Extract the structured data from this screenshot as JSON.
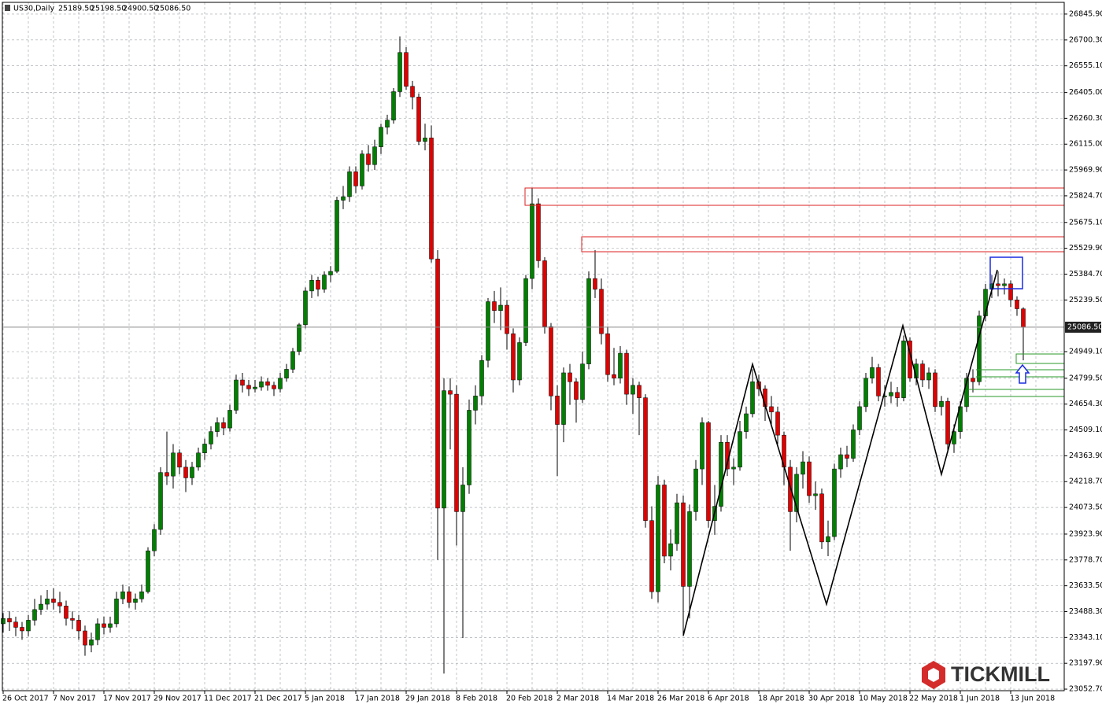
{
  "chart_data": {
    "type": "candlestick",
    "title": "US30,Daily",
    "header_labels": [
      "25189.50",
      "25198.50",
      "24900.50",
      "25086.50"
    ],
    "watermark": "TICKMILL",
    "up_color": "#008000",
    "down_color": "#e00000",
    "grid": true,
    "ylim": [
      23044,
      26925
    ],
    "yticks": [
      {
        "value": 26845.9,
        "label": "26845.90"
      },
      {
        "value": 26700.3,
        "label": "26700.30"
      },
      {
        "value": 26555.1,
        "label": "26555.10"
      },
      {
        "value": 26405,
        "label": "26405.00"
      },
      {
        "value": 26260.3,
        "label": "26260.30"
      },
      {
        "value": 26115,
        "label": "26115.00"
      },
      {
        "value": 25969.9,
        "label": "25969.90"
      },
      {
        "value": 25824.7,
        "label": "25824.70"
      },
      {
        "value": 25675.1,
        "label": "25675.10"
      },
      {
        "value": 25529.9,
        "label": "25529.90"
      },
      {
        "value": 25384.7,
        "label": "25384.70"
      },
      {
        "value": 25239.5,
        "label": "25239.50"
      },
      {
        "value": 24949.1,
        "label": "24949.10"
      },
      {
        "value": 24799.5,
        "label": "24799.50"
      },
      {
        "value": 24654.3,
        "label": "24654.30"
      },
      {
        "value": 24509.1,
        "label": "24509.10"
      },
      {
        "value": 24363.9,
        "label": "24363.90"
      },
      {
        "value": 24218.7,
        "label": "24218.70"
      },
      {
        "value": 24073.5,
        "label": "24073.50"
      },
      {
        "value": 23923.9,
        "label": "23923.90"
      },
      {
        "value": 23778.7,
        "label": "23778.70"
      },
      {
        "value": 23633.5,
        "label": "23633.50"
      },
      {
        "value": 23488.3,
        "label": "23488.30"
      },
      {
        "value": 23343.1,
        "label": "23343.10"
      },
      {
        "value": 23197.9,
        "label": "23197.90"
      },
      {
        "value": 23052.7,
        "label": "23052.70"
      }
    ],
    "last_price": {
      "value": 25086.5,
      "label": "25086.50"
    },
    "categories": [
      "26 Oct 2017",
      null,
      null,
      null,
      null,
      null,
      null,
      null,
      "7 Nov 2017",
      null,
      null,
      null,
      null,
      null,
      null,
      null,
      "17 Nov 2017",
      null,
      null,
      null,
      null,
      null,
      null,
      null,
      "29 Nov 2017",
      null,
      null,
      null,
      null,
      null,
      null,
      null,
      "11 Dec 2017",
      null,
      null,
      null,
      null,
      null,
      null,
      null,
      "21 Dec 2017",
      null,
      null,
      null,
      null,
      null,
      null,
      null,
      "5 Jan 2018",
      null,
      null,
      null,
      null,
      null,
      null,
      null,
      "17 Jan 2018",
      null,
      null,
      null,
      null,
      null,
      null,
      null,
      "29 Jan 2018",
      null,
      null,
      null,
      null,
      null,
      null,
      null,
      "8 Feb 2018",
      null,
      null,
      null,
      null,
      null,
      null,
      null,
      "20 Feb 2018",
      null,
      null,
      null,
      null,
      null,
      null,
      null,
      "2 Mar 2018",
      null,
      null,
      null,
      null,
      null,
      null,
      null,
      "14 Mar 2018",
      null,
      null,
      null,
      null,
      null,
      null,
      null,
      "26 Mar 2018",
      null,
      null,
      null,
      null,
      null,
      null,
      null,
      "6 Apr 2018",
      null,
      null,
      null,
      null,
      null,
      null,
      null,
      "18 Apr 2018",
      null,
      null,
      null,
      null,
      null,
      null,
      null,
      "30 Apr 2018",
      null,
      null,
      null,
      null,
      null,
      null,
      null,
      "10 May 2018",
      null,
      null,
      null,
      null,
      null,
      null,
      null,
      "22 May 2018",
      null,
      null,
      null,
      null,
      null,
      null,
      null,
      "1 Jun 2018",
      null,
      null,
      null,
      null,
      null,
      null,
      null,
      "13 Jun 2018",
      null,
      null
    ],
    "ohlc": [
      [
        23420,
        23480,
        23370,
        23450
      ],
      [
        23450,
        23490,
        23380,
        23430
      ],
      [
        23430,
        23460,
        23350,
        23400
      ],
      [
        23400,
        23430,
        23330,
        23380
      ],
      [
        23380,
        23470,
        23350,
        23440
      ],
      [
        23440,
        23560,
        23410,
        23500
      ],
      [
        23500,
        23580,
        23470,
        23530
      ],
      [
        23530,
        23610,
        23500,
        23560
      ],
      [
        23560,
        23620,
        23500,
        23540
      ],
      [
        23540,
        23600,
        23480,
        23520
      ],
      [
        23520,
        23550,
        23410,
        23450
      ],
      [
        23450,
        23490,
        23390,
        23440
      ],
      [
        23440,
        23470,
        23330,
        23380
      ],
      [
        23380,
        23410,
        23240,
        23300
      ],
      [
        23300,
        23370,
        23260,
        23330
      ],
      [
        23330,
        23450,
        23300,
        23420
      ],
      [
        23420,
        23460,
        23360,
        23400
      ],
      [
        23400,
        23460,
        23370,
        23420
      ],
      [
        23420,
        23600,
        23400,
        23560
      ],
      [
        23560,
        23640,
        23530,
        23600
      ],
      [
        23600,
        23630,
        23510,
        23540
      ],
      [
        23540,
        23590,
        23500,
        23560
      ],
      [
        23560,
        23640,
        23540,
        23600
      ],
      [
        23600,
        23850,
        23590,
        23830
      ],
      [
        23830,
        23980,
        23800,
        23950
      ],
      [
        23950,
        24300,
        23920,
        24270
      ],
      [
        24270,
        24500,
        24200,
        24250
      ],
      [
        24250,
        24430,
        24180,
        24380
      ],
      [
        24380,
        24400,
        24260,
        24300
      ],
      [
        24300,
        24340,
        24160,
        24240
      ],
      [
        24240,
        24330,
        24200,
        24300
      ],
      [
        24300,
        24410,
        24280,
        24380
      ],
      [
        24380,
        24460,
        24340,
        24430
      ],
      [
        24430,
        24530,
        24400,
        24500
      ],
      [
        24500,
        24580,
        24470,
        24550
      ],
      [
        24550,
        24580,
        24480,
        24520
      ],
      [
        24520,
        24650,
        24500,
        24620
      ],
      [
        24620,
        24820,
        24600,
        24790
      ],
      [
        24790,
        24830,
        24720,
        24760
      ],
      [
        24760,
        24790,
        24700,
        24740
      ],
      [
        24740,
        24790,
        24720,
        24750
      ],
      [
        24750,
        24810,
        24730,
        24780
      ],
      [
        24780,
        24800,
        24730,
        24760
      ],
      [
        24760,
        24780,
        24700,
        24740
      ],
      [
        24740,
        24830,
        24720,
        24800
      ],
      [
        24800,
        24880,
        24780,
        24850
      ],
      [
        24850,
        24970,
        24830,
        24950
      ],
      [
        24950,
        25110,
        24930,
        25100
      ],
      [
        25100,
        25310,
        25080,
        25290
      ],
      [
        25290,
        25380,
        25250,
        25350
      ],
      [
        25350,
        25370,
        25260,
        25300
      ],
      [
        25300,
        25400,
        25280,
        25380
      ],
      [
        25380,
        25430,
        25340,
        25400
      ],
      [
        25400,
        25820,
        25390,
        25800
      ],
      [
        25800,
        25880,
        25750,
        25820
      ],
      [
        25820,
        25990,
        25790,
        25960
      ],
      [
        25960,
        25990,
        25840,
        25880
      ],
      [
        25880,
        26080,
        25860,
        26060
      ],
      [
        26060,
        26110,
        25960,
        26000
      ],
      [
        26000,
        26140,
        25970,
        26100
      ],
      [
        26100,
        26230,
        26060,
        26210
      ],
      [
        26210,
        26280,
        26170,
        26250
      ],
      [
        26250,
        26430,
        26230,
        26410
      ],
      [
        26410,
        26720,
        26380,
        26630
      ],
      [
        26630,
        26660,
        26420,
        26440
      ],
      [
        26440,
        26470,
        26310,
        26380
      ],
      [
        26380,
        26400,
        26110,
        26130
      ],
      [
        26130,
        26230,
        26080,
        26150
      ],
      [
        26150,
        26220,
        25450,
        25470
      ],
      [
        25470,
        25520,
        23780,
        24070
      ],
      [
        24070,
        24800,
        23140,
        24730
      ],
      [
        24730,
        24800,
        24400,
        24710
      ],
      [
        24710,
        24760,
        23860,
        24050
      ],
      [
        24050,
        24300,
        23340,
        24200
      ],
      [
        24200,
        24680,
        24150,
        24620
      ],
      [
        24620,
        24760,
        24540,
        24700
      ],
      [
        24700,
        24930,
        24650,
        24900
      ],
      [
        24900,
        25250,
        24860,
        25230
      ],
      [
        25230,
        25290,
        25110,
        25180
      ],
      [
        25180,
        25310,
        25070,
        25210
      ],
      [
        25210,
        25240,
        24960,
        25050
      ],
      [
        25050,
        25080,
        24720,
        24790
      ],
      [
        24790,
        25030,
        24760,
        25000
      ],
      [
        25000,
        25380,
        24980,
        25360
      ],
      [
        25360,
        25870,
        25300,
        25780
      ],
      [
        25780,
        25810,
        25420,
        25460
      ],
      [
        25460,
        25480,
        25050,
        25090
      ],
      [
        25090,
        25110,
        24620,
        24700
      ],
      [
        24700,
        24760,
        24250,
        24540
      ],
      [
        24540,
        24860,
        24440,
        24830
      ],
      [
        24830,
        24880,
        24650,
        24780
      ],
      [
        24780,
        24800,
        24550,
        24680
      ],
      [
        24680,
        24950,
        24660,
        24880
      ],
      [
        24880,
        25400,
        24850,
        25360
      ],
      [
        25360,
        25520,
        25250,
        25300
      ],
      [
        25300,
        25360,
        24990,
        25050
      ],
      [
        25050,
        25090,
        24780,
        24820
      ],
      [
        24820,
        24970,
        24760,
        24800
      ],
      [
        24800,
        24980,
        24770,
        24940
      ],
      [
        24940,
        24960,
        24650,
        24710
      ],
      [
        24710,
        24800,
        24600,
        24760
      ],
      [
        24760,
        24780,
        24480,
        24690
      ],
      [
        24690,
        24710,
        23960,
        24000
      ],
      [
        24000,
        24080,
        23560,
        23600
      ],
      [
        23600,
        24250,
        23540,
        24200
      ],
      [
        24200,
        24230,
        23760,
        23800
      ],
      [
        23800,
        23950,
        23720,
        23870
      ],
      [
        23870,
        24150,
        23830,
        24100
      ],
      [
        24100,
        24140,
        23360,
        23630
      ],
      [
        23630,
        24090,
        23450,
        24050
      ],
      [
        24050,
        24340,
        24000,
        24290
      ],
      [
        24290,
        24580,
        24200,
        24550
      ],
      [
        24550,
        24560,
        23960,
        24000
      ],
      [
        24000,
        24200,
        23920,
        24080
      ],
      [
        24080,
        24480,
        24050,
        24440
      ],
      [
        24440,
        24480,
        24250,
        24290
      ],
      [
        24290,
        24350,
        24200,
        24300
      ],
      [
        24300,
        24560,
        24280,
        24500
      ],
      [
        24500,
        24640,
        24460,
        24600
      ],
      [
        24600,
        24850,
        24580,
        24780
      ],
      [
        24780,
        24820,
        24700,
        24740
      ],
      [
        24740,
        24760,
        24560,
        24640
      ],
      [
        24640,
        24700,
        24540,
        24610
      ],
      [
        24610,
        24640,
        24430,
        24480
      ],
      [
        24480,
        24500,
        24200,
        24300
      ],
      [
        24300,
        24340,
        23830,
        24050
      ],
      [
        24050,
        24300,
        23990,
        24260
      ],
      [
        24260,
        24390,
        24180,
        24330
      ],
      [
        24330,
        24360,
        24100,
        24140
      ],
      [
        24140,
        24220,
        24060,
        24150
      ],
      [
        24150,
        24180,
        23840,
        23880
      ],
      [
        23880,
        24000,
        23800,
        23910
      ],
      [
        23910,
        24320,
        23890,
        24290
      ],
      [
        24290,
        24410,
        24240,
        24370
      ],
      [
        24370,
        24420,
        24300,
        24350
      ],
      [
        24350,
        24540,
        24330,
        24510
      ],
      [
        24510,
        24670,
        24480,
        24640
      ],
      [
        24640,
        24830,
        24610,
        24800
      ],
      [
        24800,
        24920,
        24770,
        24860
      ],
      [
        24860,
        24880,
        24670,
        24700
      ],
      [
        24700,
        24760,
        24640,
        24700
      ],
      [
        24700,
        24780,
        24660,
        24720
      ],
      [
        24720,
        24750,
        24640,
        24690
      ],
      [
        24690,
        25040,
        24670,
        25010
      ],
      [
        25010,
        25030,
        24780,
        24800
      ],
      [
        24800,
        24910,
        24760,
        24880
      ],
      [
        24880,
        24900,
        24750,
        24790
      ],
      [
        24790,
        24860,
        24740,
        24830
      ],
      [
        24830,
        24850,
        24610,
        24640
      ],
      [
        24640,
        24700,
        24590,
        24670
      ],
      [
        24670,
        24690,
        24380,
        24430
      ],
      [
        24430,
        24540,
        24380,
        24500
      ],
      [
        24500,
        24670,
        24460,
        24640
      ],
      [
        24640,
        24830,
        24610,
        24800
      ],
      [
        24800,
        24850,
        24720,
        24780
      ],
      [
        24780,
        25180,
        24760,
        25150
      ],
      [
        25150,
        25330,
        25120,
        25300
      ],
      [
        25300,
        25380,
        25250,
        25330
      ],
      [
        25330,
        25400,
        25260,
        25320
      ],
      [
        25320,
        25360,
        25270,
        25330
      ],
      [
        25330,
        25350,
        25200,
        25240
      ],
      [
        25240,
        25260,
        25150,
        25190
      ],
      [
        25189.5,
        25198.5,
        24900.5,
        25086.5
      ]
    ]
  }
}
